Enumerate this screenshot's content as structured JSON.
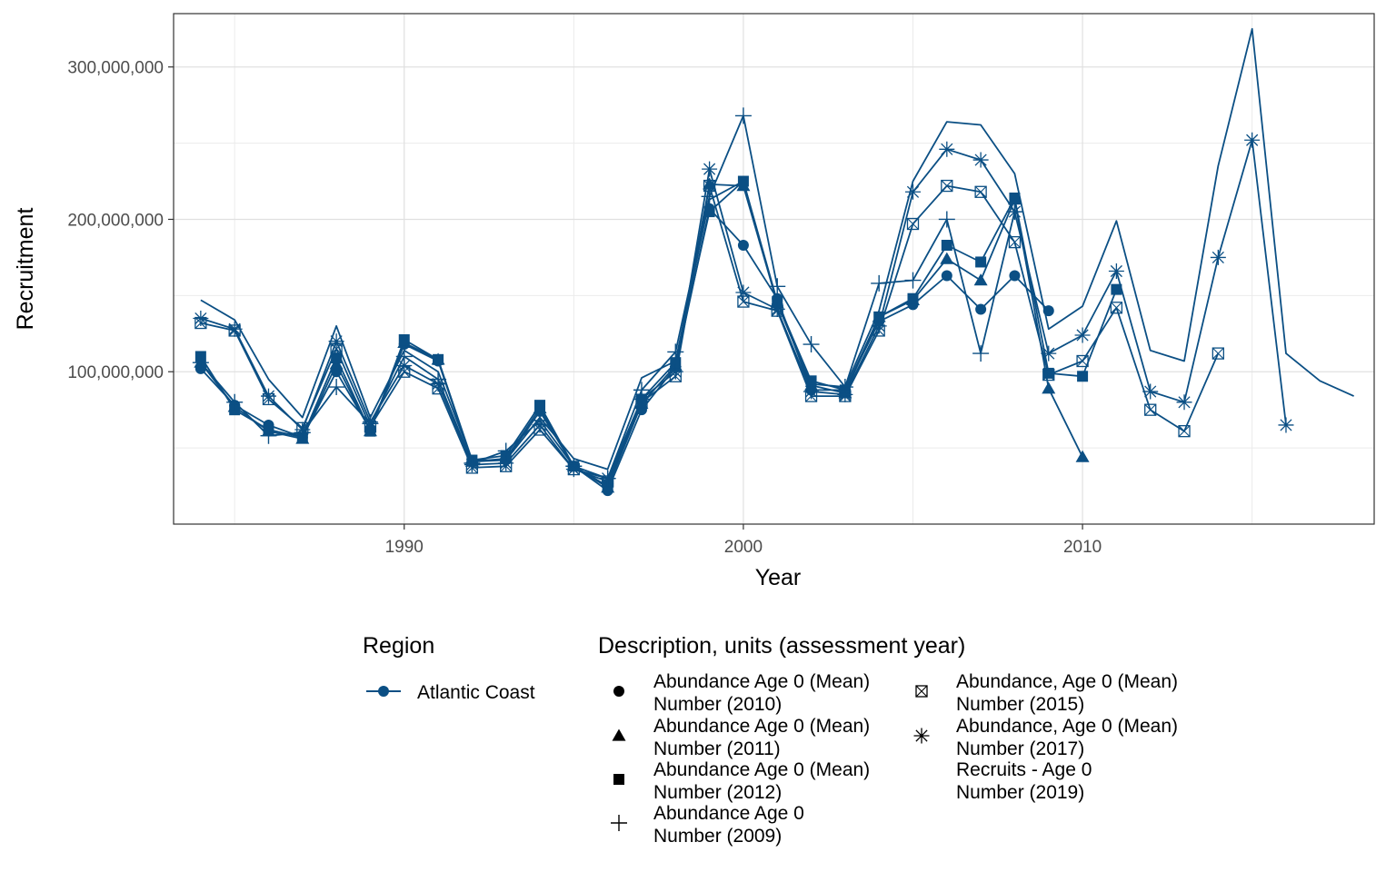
{
  "chart_data": {
    "type": "line",
    "title": "",
    "xlabel": "Year",
    "ylabel": "Recruitment",
    "xlim": [
      1983.2,
      2018.6
    ],
    "ylim": [
      0,
      335000000
    ],
    "x_ticks": [
      1990,
      2000,
      2010
    ],
    "x_tick_labels": [
      "1990",
      "2000",
      "2010"
    ],
    "y_ticks": [
      100000000,
      200000000,
      300000000
    ],
    "y_tick_labels": [
      "100,000,000",
      "200,000,000",
      "300,000,000"
    ],
    "grid": true,
    "legend_position": "bottom",
    "region_legend": {
      "title": "Region",
      "items": [
        {
          "label": "Atlantic Coast",
          "color": "#0b4f84"
        }
      ]
    },
    "description_legend": {
      "title": "Description, units (assessment year)",
      "items": [
        {
          "line1": "Abundance Age 0 (Mean)",
          "line2": "Number (2010)",
          "shape": "circle"
        },
        {
          "line1": "Abundance Age 0 (Mean)",
          "line2": "Number (2011)",
          "shape": "triangle"
        },
        {
          "line1": "Abundance Age 0 (Mean)",
          "line2": "Number (2012)",
          "shape": "square"
        },
        {
          "line1": "Abundance Age 0",
          "line2": "Number (2009)",
          "shape": "plus"
        },
        {
          "line1": "Abundance, Age 0 (Mean)",
          "line2": "Number (2015)",
          "shape": "boxx"
        },
        {
          "line1": "Abundance, Age 0 (Mean)",
          "line2": "Number (2017)",
          "shape": "asterisk"
        },
        {
          "line1": "Recruits - Age 0",
          "line2": "Number (2019)",
          "shape": "none"
        }
      ]
    },
    "color": "#0b4f84",
    "series": [
      {
        "shape": "circle",
        "x": [
          1984,
          1985,
          1986,
          1987,
          1988,
          1989,
          1990,
          1991,
          1992,
          1993,
          1994,
          1995,
          1996,
          1997,
          1998,
          1999,
          2000,
          2001,
          2002,
          2003,
          2004,
          2005,
          2006,
          2007,
          2008,
          2009
        ],
        "values": [
          102000000,
          78000000,
          65000000,
          57000000,
          100000000,
          62000000,
          118000000,
          107000000,
          41000000,
          42000000,
          74000000,
          38000000,
          22000000,
          75000000,
          103000000,
          207000000,
          183000000,
          148000000,
          88000000,
          88000000,
          133000000,
          144000000,
          163000000,
          141000000,
          163000000,
          140000000
        ]
      },
      {
        "shape": "triangle",
        "x": [
          1984,
          1985,
          1986,
          1987,
          1988,
          1989,
          1990,
          1991,
          1992,
          1993,
          1994,
          1995,
          1996,
          1997,
          1998,
          1999,
          2000,
          2001,
          2002,
          2003,
          2004,
          2005,
          2006,
          2007,
          2008,
          2009,
          2010
        ],
        "values": [
          106000000,
          77000000,
          61000000,
          56000000,
          105000000,
          61000000,
          119000000,
          108000000,
          41000000,
          43000000,
          76000000,
          38000000,
          24000000,
          79000000,
          104000000,
          223000000,
          222000000,
          145000000,
          91000000,
          86000000,
          136000000,
          147000000,
          174000000,
          160000000,
          213000000,
          89000000,
          44000000
        ]
      },
      {
        "shape": "square",
        "x": [
          1984,
          1985,
          1986,
          1987,
          1988,
          1989,
          1990,
          1991,
          1992,
          1993,
          1994,
          1995,
          1996,
          1997,
          1998,
          1999,
          2000,
          2001,
          2002,
          2003,
          2004,
          2005,
          2006,
          2007,
          2008,
          2009,
          2010,
          2011
        ],
        "values": [
          110000000,
          75000000,
          62000000,
          57000000,
          109000000,
          61000000,
          121000000,
          108000000,
          42000000,
          45000000,
          78000000,
          38000000,
          25000000,
          82000000,
          106000000,
          205000000,
          225000000,
          146000000,
          94000000,
          88000000,
          136000000,
          148000000,
          183000000,
          172000000,
          214000000,
          99000000,
          97000000,
          154000000
        ]
      },
      {
        "shape": "plus",
        "x": [
          1984,
          1985,
          1986,
          1987,
          1988,
          1989,
          1990,
          1991,
          1992,
          1993,
          1994,
          1995,
          1996,
          1997,
          1998,
          1999,
          2000,
          2001,
          2002,
          2003,
          2004,
          2005,
          2006,
          2007,
          2008
        ],
        "values": [
          106000000,
          80000000,
          58000000,
          60000000,
          90000000,
          66000000,
          110000000,
          95000000,
          40000000,
          48000000,
          68000000,
          38000000,
          30000000,
          88000000,
          113000000,
          215000000,
          268000000,
          156000000,
          118000000,
          90000000,
          158000000,
          160000000,
          200000000,
          112000000,
          205000000
        ]
      },
      {
        "shape": "boxx",
        "x": [
          1984,
          1985,
          1986,
          1987,
          1988,
          1989,
          1990,
          1991,
          1992,
          1993,
          1994,
          1995,
          1996,
          1997,
          1998,
          1999,
          2000,
          2001,
          2002,
          2003,
          2004,
          2005,
          2006,
          2007,
          2008,
          2009,
          2010,
          2011,
          2012,
          2013,
          2014
        ],
        "values": [
          132000000,
          127000000,
          82000000,
          63000000,
          115000000,
          64000000,
          100000000,
          89000000,
          37000000,
          38000000,
          62000000,
          36000000,
          28000000,
          80000000,
          97000000,
          222000000,
          146000000,
          140000000,
          84000000,
          84000000,
          127000000,
          197000000,
          222000000,
          218000000,
          185000000,
          98000000,
          107000000,
          142000000,
          75000000,
          61000000,
          112000000
        ]
      },
      {
        "shape": "asterisk",
        "x": [
          1984,
          1985,
          1986,
          1987,
          1988,
          1989,
          1990,
          1991,
          1992,
          1993,
          1994,
          1995,
          1996,
          1997,
          1998,
          1999,
          2000,
          2001,
          2002,
          2003,
          2004,
          2005,
          2006,
          2007,
          2008,
          2009,
          2010,
          2011,
          2012,
          2013,
          2014,
          2015,
          2016
        ],
        "values": [
          135000000,
          128000000,
          84000000,
          62000000,
          120000000,
          67000000,
          104000000,
          92000000,
          39000000,
          40000000,
          65000000,
          36000000,
          30000000,
          82000000,
          100000000,
          233000000,
          152000000,
          141000000,
          87000000,
          85000000,
          130000000,
          218000000,
          246000000,
          239000000,
          205000000,
          112000000,
          124000000,
          166000000,
          87000000,
          80000000,
          175000000,
          252000000,
          65000000
        ]
      },
      {
        "shape": "none",
        "x": [
          1984,
          1985,
          1986,
          1987,
          1988,
          1989,
          1990,
          1991,
          1992,
          1993,
          1994,
          1995,
          1996,
          1997,
          1998,
          1999,
          2000,
          2001,
          2002,
          2003,
          2004,
          2005,
          2006,
          2007,
          2008,
          2009,
          2010,
          2011,
          2012,
          2013,
          2014,
          2015,
          2016,
          2017,
          2018
        ],
        "values": [
          147000000,
          134000000,
          95000000,
          70000000,
          130000000,
          70000000,
          114000000,
          100000000,
          42000000,
          42000000,
          70000000,
          43000000,
          36000000,
          96000000,
          107000000,
          213000000,
          225000000,
          145000000,
          92000000,
          90000000,
          140000000,
          225000000,
          264000000,
          262000000,
          230000000,
          128000000,
          143000000,
          199000000,
          114000000,
          107000000,
          235000000,
          325000000,
          112000000,
          94000000,
          84000000
        ]
      }
    ]
  }
}
